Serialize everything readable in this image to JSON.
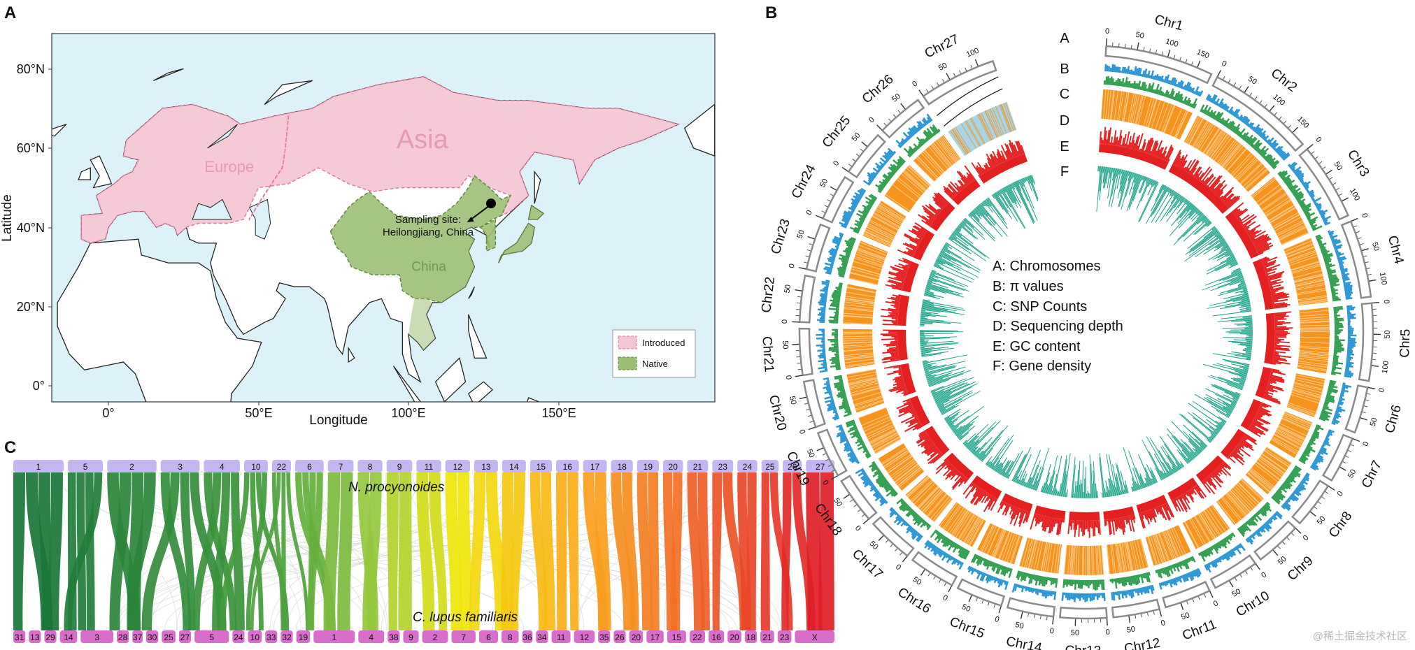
{
  "panel_labels": [
    "A",
    "B",
    "C"
  ],
  "map": {
    "x_label": "Longitude",
    "y_label": "Latitude",
    "x_ticks": [
      "0°",
      "50°E",
      "100°E",
      "150°E"
    ],
    "y_ticks": [
      "80°N",
      "60°N",
      "40°N",
      "20°N",
      "0°"
    ],
    "region_labels": [
      "Asia",
      "Europe",
      "China"
    ],
    "site_label": [
      "Sampling site:",
      "Heilongjiang, China"
    ],
    "legend": [
      "Introduced",
      "Native"
    ]
  },
  "circos": {
    "track_letters": [
      "A",
      "B",
      "C",
      "D",
      "E",
      "F"
    ],
    "legend": [
      "A: Chromosomes",
      "B: π values",
      "C: SNP Counts",
      "D: Sequencing depth",
      "E: GC content",
      "F: Gene density"
    ],
    "chromosomes": [
      {
        "name": "Chr1",
        "ticks": [
          "0",
          "50",
          "100",
          "150"
        ]
      },
      {
        "name": "Chr2",
        "ticks": [
          "0",
          "50",
          "100",
          "150"
        ]
      },
      {
        "name": "Chr3",
        "ticks": [
          "0",
          "50",
          "100"
        ]
      },
      {
        "name": "Chr4",
        "ticks": [
          "0",
          "50",
          "100"
        ]
      },
      {
        "name": "Chr5",
        "ticks": [
          "0",
          "50",
          "100"
        ]
      },
      {
        "name": "Chr6",
        "ticks": [
          "0",
          "50"
        ]
      },
      {
        "name": "Chr7",
        "ticks": [
          "0",
          "50"
        ]
      },
      {
        "name": "Chr8",
        "ticks": [
          "0",
          "50"
        ]
      },
      {
        "name": "Chr9",
        "ticks": [
          "0",
          "50"
        ]
      },
      {
        "name": "Chr10",
        "ticks": [
          "0",
          "50"
        ]
      },
      {
        "name": "Chr11",
        "ticks": [
          "0",
          "50"
        ]
      },
      {
        "name": "Chr12",
        "ticks": [
          "0",
          "50"
        ]
      },
      {
        "name": "Chr13",
        "ticks": [
          "0",
          "50"
        ]
      },
      {
        "name": "Chr14",
        "ticks": [
          "0",
          "50"
        ]
      },
      {
        "name": "Chr15",
        "ticks": [
          "0",
          "50"
        ]
      },
      {
        "name": "Chr16",
        "ticks": [
          "0",
          "50"
        ]
      },
      {
        "name": "Chr17",
        "ticks": [
          "0",
          "50"
        ]
      },
      {
        "name": "Chr18",
        "ticks": [
          "0",
          "50"
        ]
      },
      {
        "name": "Chr19",
        "ticks": [
          "0",
          "50"
        ]
      },
      {
        "name": "Chr20",
        "ticks": [
          "0",
          "50"
        ]
      },
      {
        "name": "Chr21",
        "ticks": [
          "0",
          "50"
        ]
      },
      {
        "name": "Chr22",
        "ticks": [
          "0",
          "50"
        ]
      },
      {
        "name": "Chr23",
        "ticks": [
          "0",
          "50"
        ]
      },
      {
        "name": "Chr24",
        "ticks": [
          "0",
          "50"
        ]
      },
      {
        "name": "Chr25",
        "ticks": [
          "0",
          "50"
        ]
      },
      {
        "name": "Chr26",
        "ticks": [
          "0",
          "50"
        ]
      },
      {
        "name": "Chr27",
        "ticks": [
          "0",
          "50",
          "100"
        ]
      }
    ]
  },
  "synteny": {
    "top_label": "N. procyonoides",
    "bottom_label": "C. lupus familiaris",
    "top": [
      "1",
      "5",
      "2",
      "3",
      "4",
      "10",
      "22",
      "6",
      "7",
      "8",
      "9",
      "11",
      "12",
      "13",
      "14",
      "15",
      "16",
      "17",
      "18",
      "19",
      "20",
      "21",
      "23",
      "24",
      "25",
      "26",
      "27"
    ],
    "bottom": [
      "31",
      "13",
      "29",
      "14",
      "3",
      "28",
      "37",
      "30",
      "25",
      "27",
      "5",
      "24",
      "10",
      "33",
      "32",
      "19",
      "1",
      "4",
      "38",
      "9",
      "2",
      "7",
      "6",
      "8",
      "36",
      "34",
      "11",
      "12",
      "35",
      "26",
      "20",
      "17",
      "15",
      "22",
      "16",
      "20",
      "18",
      "21",
      "23",
      "X"
    ]
  },
  "watermark": "@稀土掘金技术社区"
}
